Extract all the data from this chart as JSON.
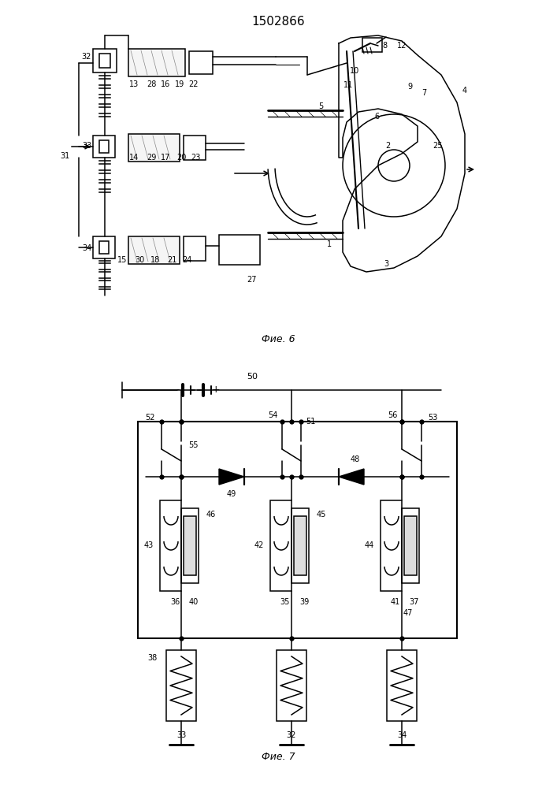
{
  "title": "1502866",
  "fig6_label": "Фие. 6",
  "fig7_label": "Фие. 7",
  "bg_color": "#ffffff",
  "line_color": "#000000"
}
